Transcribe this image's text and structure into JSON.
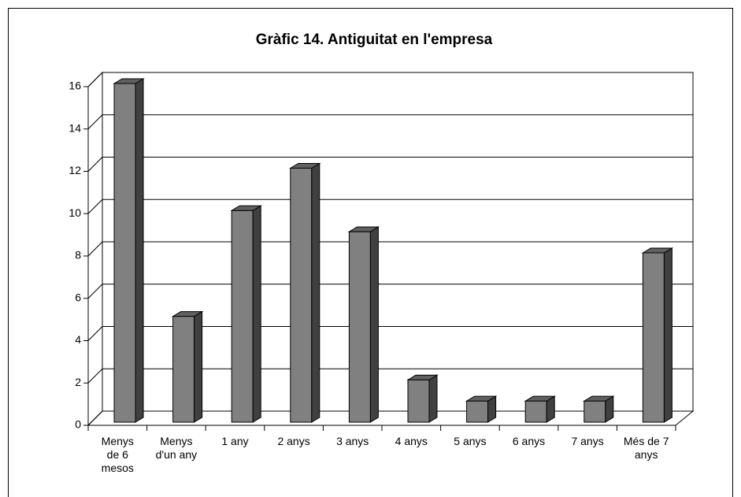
{
  "chart_data": {
    "type": "bar3d",
    "title": "Gràfic 14. Antiguitat en l'empresa",
    "categories": [
      "Menys de 6 mesos",
      "Menys d'un any",
      "1 any",
      "2 anys",
      "3 anys",
      "4 anys",
      "5 anys",
      "6 anys",
      "7 anys",
      "Més de 7 anys"
    ],
    "values": [
      16,
      5,
      10,
      12,
      9,
      2,
      1,
      1,
      1,
      8
    ],
    "color": "#808080",
    "ylim": [
      0,
      16
    ],
    "yticks": [
      0,
      2,
      4,
      6,
      8,
      10,
      12,
      14,
      16
    ],
    "grid": true
  }
}
